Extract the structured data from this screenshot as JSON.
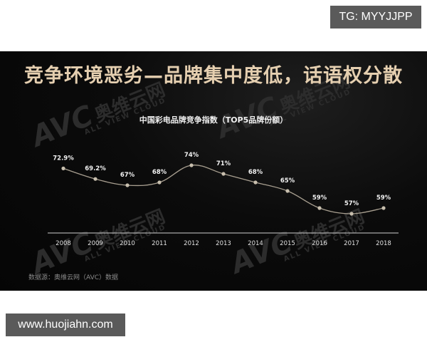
{
  "overlay": {
    "top_tag": "TG: MYYJJPP",
    "bottom_tag": "www.huojiahn.com"
  },
  "slide": {
    "title": "竞争环境恶劣—品牌集中度低，话语权分散",
    "watermark": {
      "logo": "AVC",
      "cn": "奥维云网",
      "en": "ALL VIEW CLOUD"
    },
    "source": "数据源：奥维云网（AVC）数据"
  },
  "colors": {
    "background": "#0a0a0a",
    "title": "#e5cfb0",
    "line": "#a89f90",
    "marker": "#c8bfae",
    "axis": "#cfcfcf",
    "label": "#f2f2f2"
  },
  "chart_data": {
    "type": "line",
    "title": "中国彩电品牌竞争指数（TOP5品牌份额）",
    "xlabel": "",
    "ylabel": "",
    "categories": [
      "2008",
      "2009",
      "2010",
      "2011",
      "2012",
      "2013",
      "2014",
      "2015",
      "2016",
      "2017",
      "2018"
    ],
    "values": [
      72.9,
      69.2,
      67,
      68,
      74,
      71,
      68,
      65,
      59,
      57,
      59
    ],
    "data_labels": [
      "72.9%",
      "69.2%",
      "67%",
      "68%",
      "74%",
      "71%",
      "68%",
      "65%",
      "59%",
      "57%",
      "59%"
    ],
    "series": [
      {
        "name": "TOP5品牌份额",
        "values": [
          72.9,
          69.2,
          67,
          68,
          74,
          71,
          68,
          65,
          59,
          57,
          59
        ]
      }
    ],
    "ylim": [
      55,
      76
    ],
    "grid": false,
    "legend": "none",
    "smooth": true
  }
}
